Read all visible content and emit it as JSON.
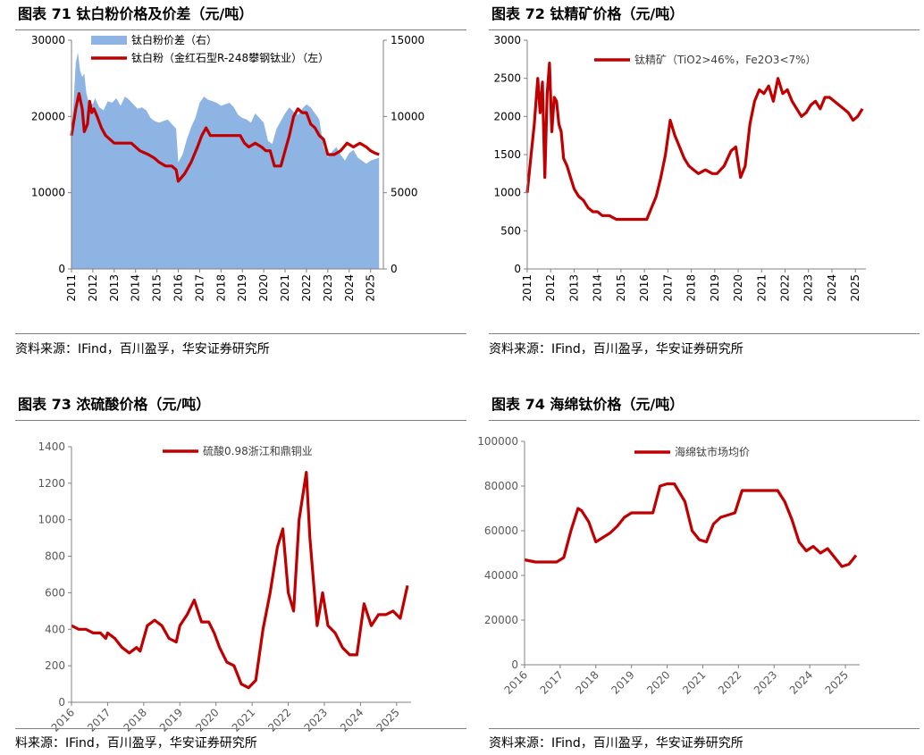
{
  "colors": {
    "red": "#C00000",
    "blue": "#8EB4E3",
    "axis": "#808080"
  },
  "charts": [
    {
      "title": "图表 71 钛白粉价格及价差（元/吨）",
      "source": "资料来源：IFind，百川盈孚，华安证券研究所",
      "chart_data": {
        "type": "line",
        "x_ticks": [
          "2011",
          "2012",
          "2013",
          "2014",
          "2015",
          "2016",
          "2017",
          "2018",
          "2019",
          "2020",
          "2021",
          "2022",
          "2023",
          "2024",
          "2025"
        ],
        "y_left": {
          "ticks": [
            "0",
            "10000",
            "20000",
            "30000"
          ],
          "ylim": [
            0,
            30000
          ]
        },
        "y_right": {
          "ticks": [
            "0",
            "5000",
            "10000",
            "15000"
          ],
          "ylim": [
            0,
            15000
          ]
        },
        "xlim": [
          2011,
          2025.6
        ],
        "series": [
          {
            "name": "钛白粉价差（右）",
            "kind": "area",
            "axis": "right",
            "x": [
              2011.0,
              2011.1,
              2011.2,
              2011.3,
              2011.4,
              2011.5,
              2011.6,
              2011.7,
              2011.8,
              2012.0,
              2012.1,
              2012.3,
              2012.5,
              2012.7,
              2012.9,
              2013.1,
              2013.3,
              2013.5,
              2013.7,
              2013.9,
              2014.1,
              2014.3,
              2014.5,
              2014.7,
              2014.9,
              2015.1,
              2015.3,
              2015.5,
              2015.7,
              2015.9,
              2016.0,
              2016.2,
              2016.4,
              2016.6,
              2016.8,
              2017.0,
              2017.2,
              2017.4,
              2017.6,
              2017.8,
              2018.0,
              2018.2,
              2018.4,
              2018.6,
              2018.8,
              2019.0,
              2019.2,
              2019.4,
              2019.6,
              2019.8,
              2020.0,
              2020.2,
              2020.4,
              2020.6,
              2020.8,
              2021.0,
              2021.2,
              2021.4,
              2021.6,
              2021.8,
              2022.0,
              2022.2,
              2022.4,
              2022.6,
              2022.8,
              2023.0,
              2023.2,
              2023.4,
              2023.6,
              2023.8,
              2024.0,
              2024.2,
              2024.4,
              2024.6,
              2024.8,
              2025.0,
              2025.2,
              2025.4
            ],
            "values": [
              9000,
              11000,
              13500,
              14200,
              13000,
              12600,
              12800,
              11500,
              11000,
              10800,
              11200,
              10600,
              10400,
              11000,
              10900,
              11200,
              10700,
              11300,
              11100,
              10800,
              10500,
              10600,
              10400,
              9900,
              9700,
              9600,
              9700,
              9800,
              9500,
              9200,
              7000,
              7500,
              8500,
              9300,
              9900,
              10900,
              11300,
              11100,
              11000,
              10900,
              10700,
              10800,
              10900,
              10600,
              10100,
              9900,
              9800,
              9600,
              10200,
              9900,
              9600,
              8400,
              8200,
              9200,
              9700,
              10200,
              10600,
              10300,
              10100,
              10500,
              10800,
              10600,
              10200,
              9800,
              8000,
              7300,
              7700,
              8000,
              7500,
              7100,
              7600,
              7800,
              7300,
              7100,
              6900,
              7100,
              7200,
              7300
            ]
          },
          {
            "name": "钛白粉（金红石型R-248攀钢钛业）（左）",
            "kind": "line",
            "axis": "left",
            "x": [
              2011.0,
              2011.2,
              2011.35,
              2011.5,
              2011.6,
              2011.75,
              2011.85,
              2011.95,
              2012.05,
              2012.2,
              2012.4,
              2012.6,
              2012.8,
              2013.0,
              2013.2,
              2013.5,
              2013.8,
              2014.2,
              2014.6,
              2014.9,
              2015.1,
              2015.4,
              2015.7,
              2015.9,
              2016.0,
              2016.3,
              2016.6,
              2016.9,
              2017.1,
              2017.3,
              2017.5,
              2018.0,
              2018.5,
              2018.9,
              2019.1,
              2019.3,
              2019.6,
              2019.9,
              2020.1,
              2020.3,
              2020.5,
              2020.8,
              2021.0,
              2021.2,
              2021.4,
              2021.6,
              2021.8,
              2022.0,
              2022.2,
              2022.4,
              2022.6,
              2022.8,
              2023.0,
              2023.3,
              2023.6,
              2023.9,
              2024.2,
              2024.5,
              2024.8,
              2025.0,
              2025.2,
              2025.4
            ],
            "values": [
              17500,
              21000,
              23000,
              21000,
              18000,
              19000,
              22000,
              20500,
              21000,
              20000,
              18500,
              17500,
              17000,
              16500,
              16500,
              16500,
              16500,
              15500,
              15000,
              14500,
              14000,
              13500,
              13500,
              13000,
              11500,
              12500,
              14000,
              16000,
              17500,
              18500,
              17500,
              17500,
              17500,
              17500,
              16500,
              16000,
              16500,
              16000,
              15500,
              15500,
              13500,
              13500,
              15500,
              17500,
              20000,
              21000,
              20500,
              20500,
              19000,
              18500,
              17500,
              17000,
              15000,
              15000,
              15500,
              16500,
              16000,
              16500,
              16000,
              15500,
              15200,
              15000
            ]
          }
        ]
      }
    },
    {
      "title": "图表 72 钛精矿价格（元/吨）",
      "source": "资料来源：IFind，百川盈孚，华安证券研究所",
      "chart_data": {
        "type": "line",
        "x_ticks": [
          "2011",
          "2012",
          "2013",
          "2014",
          "2015",
          "2016",
          "2017",
          "2018",
          "2019",
          "2020",
          "2021",
          "2022",
          "2023",
          "2024",
          "2025"
        ],
        "y_left": {
          "ticks": [
            "0",
            "500",
            "1000",
            "1500",
            "2000",
            "2500",
            "3000"
          ],
          "ylim": [
            0,
            3000
          ]
        },
        "xlim": [
          2011,
          2025.45
        ],
        "series": [
          {
            "name": "钛精矿（TiO2>46%，Fe2O3<7%）",
            "kind": "line",
            "axis": "left",
            "x": [
              2011.0,
              2011.15,
              2011.3,
              2011.45,
              2011.55,
              2011.65,
              2011.75,
              2011.85,
              2011.95,
              2012.05,
              2012.15,
              2012.25,
              2012.35,
              2012.45,
              2012.55,
              2012.7,
              2012.85,
              2013.0,
              2013.2,
              2013.4,
              2013.6,
              2013.8,
              2014.0,
              2014.2,
              2014.5,
              2014.8,
              2015.0,
              2015.3,
              2015.6,
              2015.9,
              2016.1,
              2016.3,
              2016.5,
              2016.7,
              2016.9,
              2017.1,
              2017.3,
              2017.5,
              2017.7,
              2017.9,
              2018.1,
              2018.3,
              2018.6,
              2018.9,
              2019.1,
              2019.4,
              2019.7,
              2019.9,
              2020.1,
              2020.3,
              2020.5,
              2020.7,
              2020.9,
              2021.1,
              2021.3,
              2021.5,
              2021.7,
              2021.9,
              2022.1,
              2022.3,
              2022.5,
              2022.7,
              2022.9,
              2023.1,
              2023.3,
              2023.5,
              2023.7,
              2023.9,
              2024.1,
              2024.3,
              2024.5,
              2024.7,
              2024.9,
              2025.1,
              2025.3
            ],
            "values": [
              1000,
              1450,
              1900,
              2500,
              2050,
              2450,
              1200,
              2300,
              2700,
              1800,
              2250,
              2200,
              1900,
              1800,
              1450,
              1350,
              1200,
              1050,
              950,
              900,
              800,
              750,
              750,
              700,
              700,
              650,
              650,
              650,
              650,
              650,
              650,
              800,
              950,
              1200,
              1500,
              1950,
              1750,
              1600,
              1450,
              1350,
              1300,
              1250,
              1300,
              1250,
              1250,
              1350,
              1550,
              1600,
              1200,
              1350,
              1900,
              2200,
              2350,
              2300,
              2400,
              2200,
              2500,
              2300,
              2350,
              2200,
              2100,
              2000,
              2050,
              2150,
              2200,
              2100,
              2250,
              2250,
              2200,
              2150,
              2100,
              2050,
              1950,
              2000,
              2100
            ]
          }
        ]
      }
    },
    {
      "title": "图表 73 浓硫酸价格（元/吨）",
      "source": "料来源：IFind，百川盈孚，华安证券研究所",
      "chart_data": {
        "type": "line",
        "x_ticks": [
          "2016",
          "2017",
          "2018",
          "2019",
          "2020",
          "2021",
          "2022",
          "2023",
          "2024",
          "2025"
        ],
        "y_left": {
          "ticks": [
            "0",
            "200",
            "400",
            "600",
            "800",
            "1000",
            "1200",
            "1400"
          ],
          "ylim": [
            0,
            1400
          ]
        },
        "xlim": [
          2016,
          2025.4
        ],
        "series": [
          {
            "name": "硫酸0.98浙江和鼎铜业",
            "kind": "line",
            "axis": "left",
            "x": [
              2016.0,
              2016.2,
              2016.4,
              2016.6,
              2016.8,
              2016.95,
              2017.0,
              2017.2,
              2017.4,
              2017.6,
              2017.8,
              2017.9,
              2018.1,
              2018.3,
              2018.5,
              2018.7,
              2018.9,
              2019.0,
              2019.2,
              2019.4,
              2019.6,
              2019.8,
              2019.95,
              2020.1,
              2020.3,
              2020.5,
              2020.7,
              2020.9,
              2021.1,
              2021.3,
              2021.5,
              2021.7,
              2021.85,
              2022.0,
              2022.15,
              2022.3,
              2022.5,
              2022.6,
              2022.8,
              2022.95,
              2023.1,
              2023.3,
              2023.5,
              2023.7,
              2023.9,
              2024.1,
              2024.3,
              2024.5,
              2024.7,
              2024.9,
              2025.1,
              2025.3
            ],
            "values": [
              420,
              400,
              400,
              380,
              380,
              350,
              380,
              350,
              300,
              270,
              300,
              280,
              420,
              450,
              420,
              350,
              330,
              420,
              480,
              560,
              440,
              440,
              380,
              300,
              220,
              200,
              100,
              80,
              120,
              400,
              600,
              850,
              950,
              600,
              500,
              1000,
              1260,
              900,
              420,
              600,
              420,
              380,
              300,
              260,
              260,
              540,
              420,
              480,
              480,
              500,
              460,
              640
            ]
          }
        ]
      }
    },
    {
      "title": "图表 74 海绵钛价格（元/吨）",
      "source": "资料来源：IFind，百川盈孚，华安证券研究所",
      "chart_data": {
        "type": "line",
        "x_ticks": [
          "2016",
          "2017",
          "2018",
          "2019",
          "2020",
          "2021",
          "2022",
          "2023",
          "2024",
          "2025"
        ],
        "y_left": {
          "ticks": [
            "0",
            "20000",
            "40000",
            "60000",
            "80000",
            "100000"
          ],
          "ylim": [
            0,
            100000
          ]
        },
        "xlim": [
          2016,
          2025.4
        ],
        "series": [
          {
            "name": "海绵钛市场均价",
            "kind": "line",
            "axis": "left",
            "x": [
              2016.0,
              2016.3,
              2016.6,
              2016.9,
              2017.1,
              2017.3,
              2017.5,
              2017.6,
              2017.8,
              2018.0,
              2018.2,
              2018.4,
              2018.6,
              2018.8,
              2019.0,
              2019.3,
              2019.6,
              2019.8,
              2020.0,
              2020.2,
              2020.5,
              2020.7,
              2020.9,
              2021.1,
              2021.3,
              2021.5,
              2021.7,
              2021.9,
              2022.1,
              2022.4,
              2022.7,
              2022.9,
              2023.1,
              2023.3,
              2023.5,
              2023.7,
              2023.9,
              2024.1,
              2024.3,
              2024.5,
              2024.7,
              2024.9,
              2025.1,
              2025.3
            ],
            "values": [
              47000,
              46000,
              46000,
              46000,
              48000,
              60000,
              70000,
              69000,
              64000,
              55000,
              57000,
              59000,
              62000,
              66000,
              68000,
              68000,
              68000,
              80000,
              81000,
              81000,
              73000,
              60000,
              56000,
              55000,
              63000,
              66000,
              67000,
              68000,
              78000,
              78000,
              78000,
              78000,
              78000,
              73000,
              65000,
              55000,
              51000,
              53000,
              50000,
              52000,
              48000,
              44000,
              45000,
              49000
            ]
          }
        ]
      }
    }
  ]
}
